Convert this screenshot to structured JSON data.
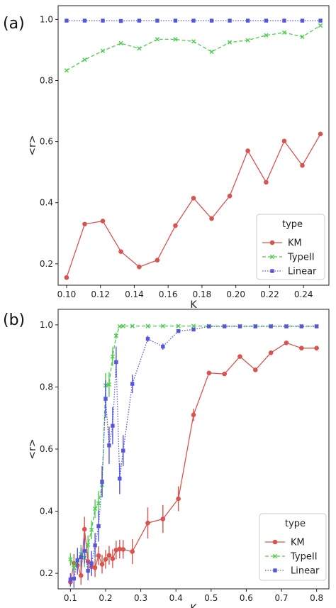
{
  "chart_data": [
    {
      "panel_label": "(a)",
      "type": "line",
      "xlabel": "K",
      "ylabel": "<r>",
      "xlim": [
        0.095,
        0.255
      ],
      "ylim": [
        0.13,
        1.045
      ],
      "xticks": [
        0.1,
        0.12,
        0.14,
        0.16,
        0.18,
        0.2,
        0.22,
        0.24
      ],
      "xtick_labels": [
        "0.10",
        "0.12",
        "0.14",
        "0.16",
        "0.18",
        "0.20",
        "0.22",
        "0.24"
      ],
      "yticks": [
        0.2,
        0.4,
        0.6,
        0.8,
        1.0
      ],
      "ytick_labels": [
        "0.2",
        "0.4",
        "0.6",
        "0.8",
        "1.0"
      ],
      "legend": {
        "title": "type",
        "placement": "lower right"
      },
      "series": [
        {
          "name": "KM",
          "color": "#d9534f",
          "marker": "circle",
          "dash": "solid",
          "x": [
            0.1,
            0.1107,
            0.1214,
            0.1321,
            0.1429,
            0.1536,
            0.1643,
            0.175,
            0.1857,
            0.1964,
            0.2071,
            0.2179,
            0.2286,
            0.2393,
            0.25
          ],
          "y": [
            0.155,
            0.33,
            0.34,
            0.24,
            0.19,
            0.212,
            0.325,
            0.415,
            0.348,
            0.422,
            0.57,
            0.467,
            0.602,
            0.522,
            0.625
          ]
        },
        {
          "name": "TypeII",
          "color": "#4ccd4c",
          "marker": "x",
          "dash": "dashed",
          "x": [
            0.1,
            0.1107,
            0.1214,
            0.1321,
            0.1429,
            0.1536,
            0.1643,
            0.175,
            0.1857,
            0.1964,
            0.2071,
            0.2179,
            0.2286,
            0.2393,
            0.25
          ],
          "y": [
            0.833,
            0.868,
            0.897,
            0.922,
            0.905,
            0.935,
            0.935,
            0.928,
            0.894,
            0.925,
            0.932,
            0.948,
            0.957,
            0.943,
            0.98
          ]
        },
        {
          "name": "Linear",
          "color": "#5555dd",
          "marker": "square",
          "dash": "dotted",
          "x": [
            0.1,
            0.1107,
            0.1214,
            0.1321,
            0.1429,
            0.1536,
            0.1643,
            0.175,
            0.1857,
            0.1964,
            0.2071,
            0.2179,
            0.2286,
            0.2393,
            0.25
          ],
          "y": [
            0.996,
            0.996,
            0.996,
            0.995,
            0.996,
            0.996,
            0.996,
            0.996,
            0.996,
            0.996,
            0.996,
            0.996,
            0.996,
            0.996,
            0.996
          ]
        }
      ]
    },
    {
      "panel_label": "(b)",
      "type": "line",
      "xlabel": "K",
      "ylabel": "<r>",
      "xlim": [
        0.065,
        0.835
      ],
      "ylim": [
        0.15,
        1.05
      ],
      "xticks": [
        0.1,
        0.2,
        0.3,
        0.4,
        0.5,
        0.6,
        0.7,
        0.8
      ],
      "xtick_labels": [
        "0.1",
        "0.2",
        "0.3",
        "0.4",
        "0.5",
        "0.6",
        "0.7",
        "0.8"
      ],
      "yticks": [
        0.2,
        0.4,
        0.6,
        0.8,
        1.0
      ],
      "ytick_labels": [
        "0.2",
        "0.4",
        "0.6",
        "0.8",
        "1.0"
      ],
      "legend": {
        "title": "type",
        "placement": "lower right"
      },
      "series": [
        {
          "name": "KM",
          "color": "#d9534f",
          "marker": "circle",
          "dash": "solid",
          "x": [
            0.1,
            0.11,
            0.12,
            0.13,
            0.14,
            0.15,
            0.16,
            0.17,
            0.18,
            0.19,
            0.2,
            0.21,
            0.22,
            0.23,
            0.24,
            0.25,
            0.276,
            0.32,
            0.363,
            0.407,
            0.45,
            0.494,
            0.538,
            0.582,
            0.626,
            0.67,
            0.714,
            0.757,
            0.8
          ],
          "y": [
            0.172,
            0.232,
            0.226,
            0.193,
            0.342,
            0.238,
            0.221,
            0.218,
            0.257,
            0.229,
            0.245,
            0.258,
            0.247,
            0.275,
            0.278,
            0.277,
            0.27,
            0.362,
            0.375,
            0.44,
            0.71,
            0.845,
            0.842,
            0.898,
            0.855,
            0.91,
            0.942,
            0.925,
            0.925
          ],
          "err": [
            0.015,
            0.03,
            0.03,
            0.03,
            0.04,
            0.03,
            0.03,
            0.03,
            0.03,
            0.03,
            0.03,
            0.03,
            0.03,
            0.03,
            0.03,
            0.03,
            0.04,
            0.05,
            0.045,
            0.04,
            0.02,
            0.0,
            0.0,
            0.0,
            0.0,
            0.0,
            0.0,
            0.0,
            0.0
          ]
        },
        {
          "name": "TypeII",
          "color": "#4ccd4c",
          "marker": "x",
          "dash": "dashed",
          "x": [
            0.1,
            0.11,
            0.12,
            0.13,
            0.14,
            0.15,
            0.16,
            0.17,
            0.18,
            0.19,
            0.2,
            0.21,
            0.22,
            0.23,
            0.24,
            0.25,
            0.276,
            0.32,
            0.363,
            0.407,
            0.45,
            0.494,
            0.538,
            0.582,
            0.626,
            0.67,
            0.714,
            0.757,
            0.8
          ],
          "y": [
            0.245,
            0.218,
            0.24,
            0.262,
            0.25,
            0.292,
            0.34,
            0.408,
            0.425,
            0.485,
            0.805,
            0.808,
            0.898,
            0.965,
            0.995,
            0.996,
            0.996,
            0.996,
            0.996,
            0.996,
            0.996,
            0.996,
            0.996,
            0.996,
            0.996,
            0.996,
            0.996,
            0.996,
            0.996
          ],
          "err": [
            0.02,
            0.03,
            0.03,
            0.03,
            0.03,
            0.03,
            0.03,
            0.03,
            0.04,
            0.04,
            0.04,
            0.04,
            0.03,
            0.01,
            0.0,
            0.0,
            0.0,
            0.0,
            0.0,
            0.0,
            0.0,
            0.0,
            0.0,
            0.0,
            0.0,
            0.0,
            0.0,
            0.0,
            0.0
          ]
        },
        {
          "name": "Linear",
          "color": "#5555dd",
          "marker": "square",
          "dash": "dotted",
          "x": [
            0.1,
            0.11,
            0.12,
            0.13,
            0.14,
            0.15,
            0.16,
            0.17,
            0.18,
            0.19,
            0.2,
            0.21,
            0.22,
            0.23,
            0.24,
            0.25,
            0.276,
            0.32,
            0.363,
            0.407,
            0.45,
            0.494,
            0.538,
            0.582,
            0.626,
            0.67,
            0.714,
            0.757,
            0.8
          ],
          "y": [
            0.18,
            0.183,
            0.242,
            0.252,
            0.272,
            0.208,
            0.232,
            0.29,
            0.352,
            0.495,
            0.762,
            0.612,
            0.675,
            0.88,
            0.505,
            0.595,
            0.81,
            0.955,
            0.93,
            0.98,
            0.985,
            0.995,
            0.995,
            0.995,
            0.995,
            0.995,
            0.995,
            0.995,
            0.995
          ],
          "err": [
            0.02,
            0.03,
            0.04,
            0.03,
            0.04,
            0.03,
            0.04,
            0.04,
            0.05,
            0.05,
            0.06,
            0.06,
            0.06,
            0.05,
            0.05,
            0.05,
            0.03,
            0.01,
            0.01,
            0.005,
            0.0,
            0.0,
            0.0,
            0.0,
            0.0,
            0.0,
            0.0,
            0.0,
            0.0
          ]
        }
      ]
    }
  ]
}
